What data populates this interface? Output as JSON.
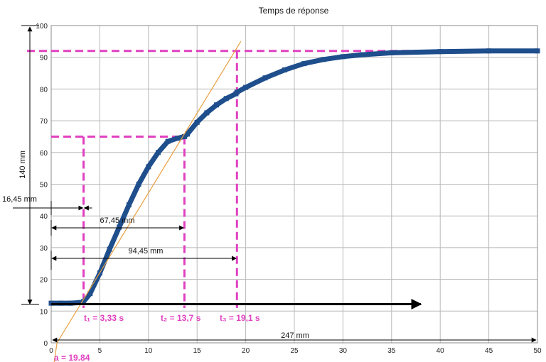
{
  "chart_data": {
    "type": "line",
    "title": "Temps de réponse",
    "xlabel": "",
    "ylabel": "",
    "xlim": [
      0,
      50
    ],
    "ylim": [
      0,
      100
    ],
    "xticks": [
      0,
      5,
      10,
      15,
      20,
      25,
      30,
      35,
      40,
      45,
      50
    ],
    "yticks": [
      0,
      10,
      20,
      30,
      40,
      50,
      60,
      70,
      80,
      90,
      100
    ],
    "grid": true,
    "colors": {
      "series": "#1f4e8c",
      "tangent": "#e8a040",
      "guides": "#e040c0",
      "arrows": "#000000"
    },
    "series": [
      {
        "x": [
          0,
          1,
          2,
          3,
          3.33,
          4,
          5,
          6,
          7,
          8,
          9,
          10,
          11,
          12,
          13,
          13.7,
          14,
          15,
          16,
          17,
          18,
          19,
          19.1,
          20,
          22,
          24,
          26,
          28,
          30,
          32,
          35,
          40,
          45,
          50
        ],
        "y": [
          12.5,
          12.5,
          12.5,
          12.7,
          13,
          15.5,
          22,
          29.5,
          36.5,
          43.5,
          50,
          55.5,
          60,
          63.5,
          64.5,
          65,
          65.8,
          69.5,
          72.5,
          75,
          77,
          78.5,
          79,
          80.5,
          83.5,
          86,
          88,
          89.3,
          90.2,
          90.8,
          91.4,
          91.8,
          92,
          92
        ]
      }
    ],
    "tangent_line": {
      "x": [
        0.6,
        19.5
      ],
      "y": [
        0,
        95
      ]
    },
    "guides": {
      "steady_y": 92,
      "mid_y": 65,
      "t1": 3.33,
      "t2": 13.7,
      "t3": 19.1
    },
    "annotations": {
      "t1": "t₁ = 3,33 s",
      "t2": "t₂ = 13,7 s",
      "t3": "t₃ = 19,1 s",
      "a": "a = 19.84",
      "dim_x_total": "247 mm",
      "dim_y_total": "140 mm",
      "dim_t1": "16,45 mm",
      "dim_t2": "67,45 mm",
      "dim_t3": "94,45 mm"
    }
  }
}
